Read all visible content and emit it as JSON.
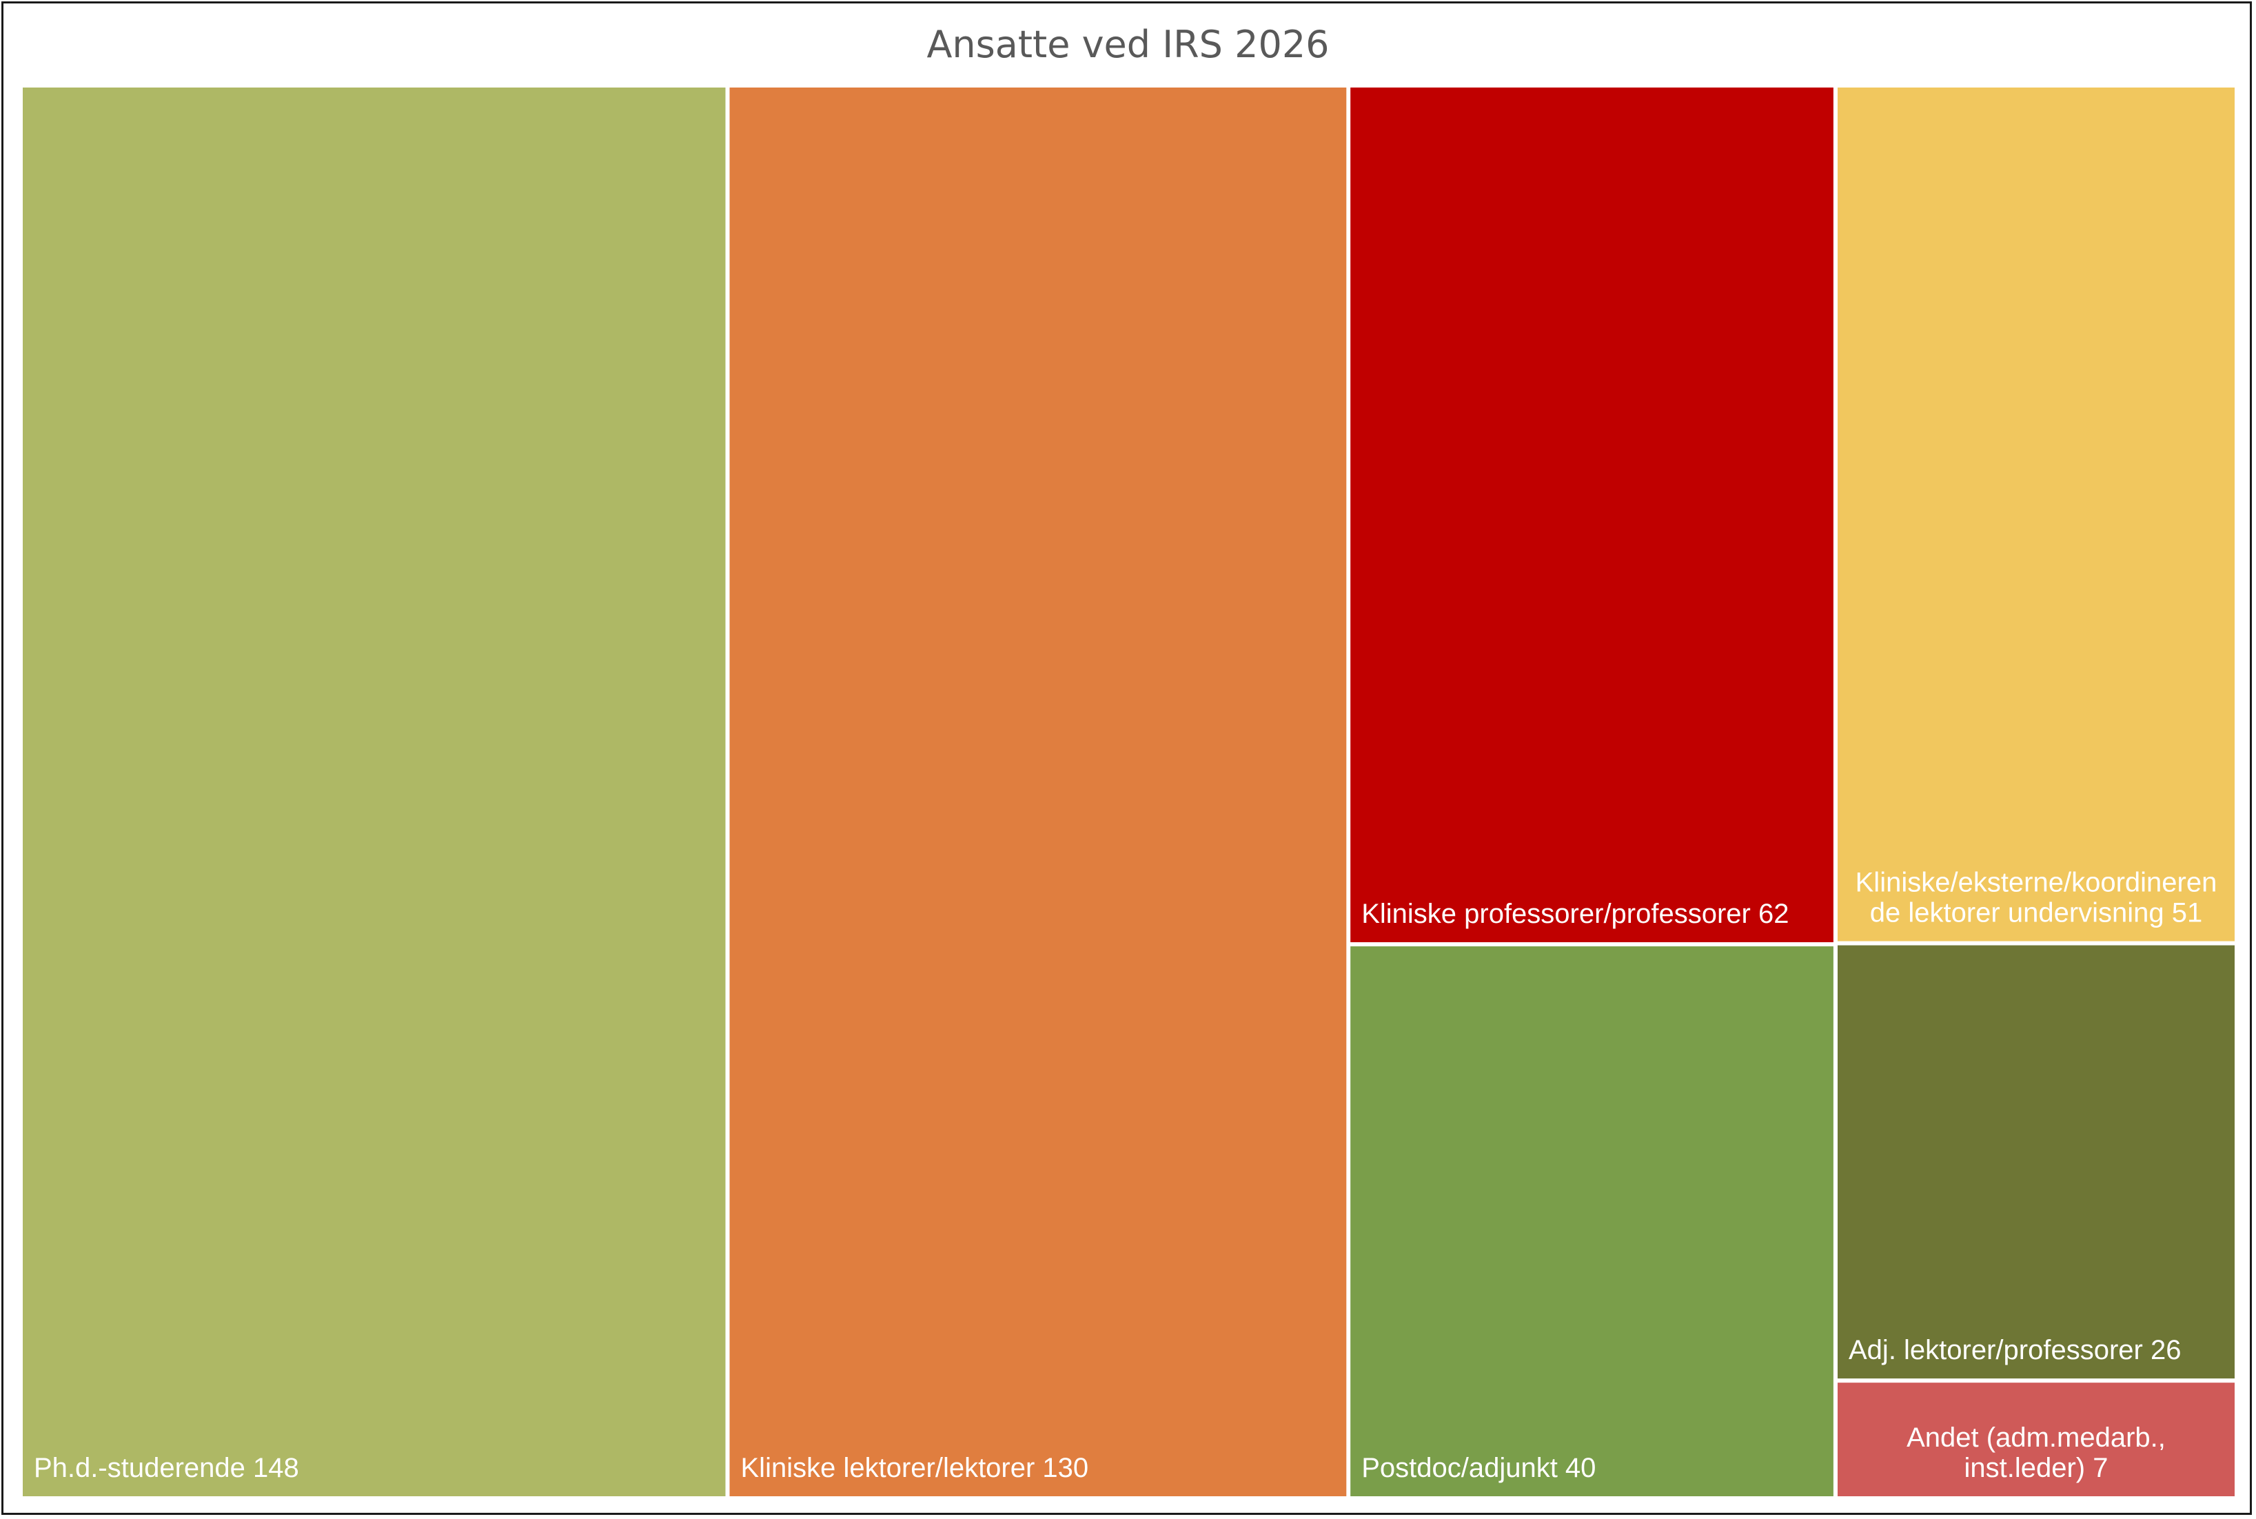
{
  "chart_data": {
    "type": "treemap",
    "title": "Ansatte ved IRS 2026",
    "items": [
      {
        "label": "Ph.d.-studerende",
        "value": 148,
        "value_text": "148",
        "color": "#AEB865"
      },
      {
        "label": "Kliniske lektorer/lektorer",
        "value": 130,
        "value_text": "130",
        "color": "#E07E3F"
      },
      {
        "label": "Kliniske professorer/professorer",
        "value": 62,
        "value_text": "62",
        "color": "#C00000"
      },
      {
        "label": "Kliniske/eksterne/koordinerende lektorer undervisning",
        "value": 51,
        "value_text": "51",
        "color": "#F1C75E",
        "lines": [
          "Kliniske/eksterne/koordineren",
          "de lektorer undervisning 51"
        ]
      },
      {
        "label": "Postdoc/adjunkt",
        "value": 40,
        "value_text": "40",
        "color": "#7A9E4A"
      },
      {
        "label": "Adj. lektorer/professorer",
        "value": 26,
        "value_text": "26",
        "color": "#6E7635"
      },
      {
        "label": "Andet (adm.medarb., inst.leder)",
        "value": 7,
        "value_text": "7",
        "color": "#CF5A58",
        "lines": [
          "Andet (adm.medarb.,",
          "inst.leder) 7"
        ]
      }
    ]
  }
}
